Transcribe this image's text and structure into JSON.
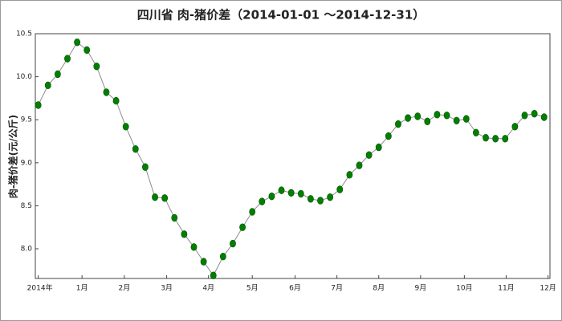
{
  "chart_data": {
    "type": "line",
    "title": "四川省 肉-猪价差（2014-01-01 ～2014-12-31）",
    "y_label": "肉-猪价差(元/公斤)",
    "x": [
      0,
      1,
      2,
      3,
      4,
      5,
      6,
      7,
      8,
      9,
      10,
      11,
      12,
      13,
      14,
      15,
      16,
      17,
      18,
      19,
      20,
      21,
      22,
      23,
      24,
      25,
      26,
      27,
      28,
      29,
      30,
      31,
      32,
      33,
      34,
      35,
      36,
      37,
      38,
      39,
      40,
      41,
      42,
      43,
      44,
      45,
      46,
      47,
      48,
      49,
      50,
      51,
      52
    ],
    "series": [
      {
        "name": "肉-猪价差",
        "color": "#008000",
        "line_color": "#8c8c8c",
        "values": [
          9.67,
          9.9,
          10.03,
          10.21,
          10.4,
          10.31,
          10.12,
          9.82,
          9.72,
          9.42,
          9.16,
          8.95,
          8.6,
          8.59,
          8.36,
          8.17,
          8.02,
          7.85,
          7.69,
          7.91,
          8.06,
          8.25,
          8.43,
          8.55,
          8.61,
          8.68,
          8.65,
          8.64,
          8.58,
          8.56,
          8.6,
          8.69,
          8.86,
          8.97,
          9.09,
          9.18,
          9.31,
          9.45,
          9.52,
          9.54,
          9.48,
          9.56,
          9.55,
          9.49,
          9.51,
          9.35,
          9.29,
          9.28,
          9.28,
          9.42,
          9.55,
          9.57,
          9.53
        ]
      }
    ],
    "xlim": [
      -0.3,
      52.6
    ],
    "xticks": [
      {
        "value": 0,
        "label": "2014年"
      },
      {
        "value": 4.5,
        "label": "1月"
      },
      {
        "value": 8.85,
        "label": "2月"
      },
      {
        "value": 13.2,
        "label": "3月"
      },
      {
        "value": 17.5,
        "label": "4月"
      },
      {
        "value": 22,
        "label": "5月"
      },
      {
        "value": 26.4,
        "label": "6月"
      },
      {
        "value": 30.7,
        "label": "7月"
      },
      {
        "value": 35,
        "label": "8月"
      },
      {
        "value": 39.3,
        "label": "9月"
      },
      {
        "value": 43.8,
        "label": "10月"
      },
      {
        "value": 48.1,
        "label": "11月"
      },
      {
        "value": 52.4,
        "label": "12月"
      }
    ],
    "ylim": [
      7.655,
      10.5
    ],
    "yticks": [
      {
        "value": 8,
        "label": "8.0"
      },
      {
        "value": 8.5,
        "label": "8.5"
      },
      {
        "value": 9,
        "label": "9.0"
      },
      {
        "value": 9.5,
        "label": "9.5"
      },
      {
        "value": 10,
        "label": "10.0"
      },
      {
        "value": 10.5,
        "label": "10.5"
      }
    ]
  }
}
